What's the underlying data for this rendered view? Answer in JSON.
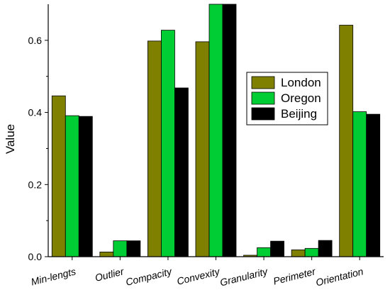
{
  "chart_data": {
    "type": "bar",
    "categories": [
      "Min-lengts",
      "Outlier",
      "Compacity",
      "Convexity",
      "Granularity",
      "Perimeter",
      "Orientation"
    ],
    "series": [
      {
        "name": "London",
        "color": "#808000",
        "values": [
          0.446,
          0.013,
          0.598,
          0.596,
          0.004,
          0.019,
          0.642
        ]
      },
      {
        "name": "Oregon",
        "color": "#00CC33",
        "values": [
          0.391,
          0.044,
          0.628,
          0.7,
          0.025,
          0.023,
          0.402
        ]
      },
      {
        "name": "Beijing",
        "color": "#000000",
        "values": [
          0.389,
          0.044,
          0.468,
          0.7,
          0.043,
          0.045,
          0.395
        ]
      }
    ],
    "title": "",
    "xlabel": "",
    "ylabel": "Value",
    "ylim": [
      0,
      0.7
    ],
    "yticks": [
      "0.0",
      "0.2",
      "0.4",
      "0.6"
    ],
    "legend": "right",
    "grid": false
  }
}
